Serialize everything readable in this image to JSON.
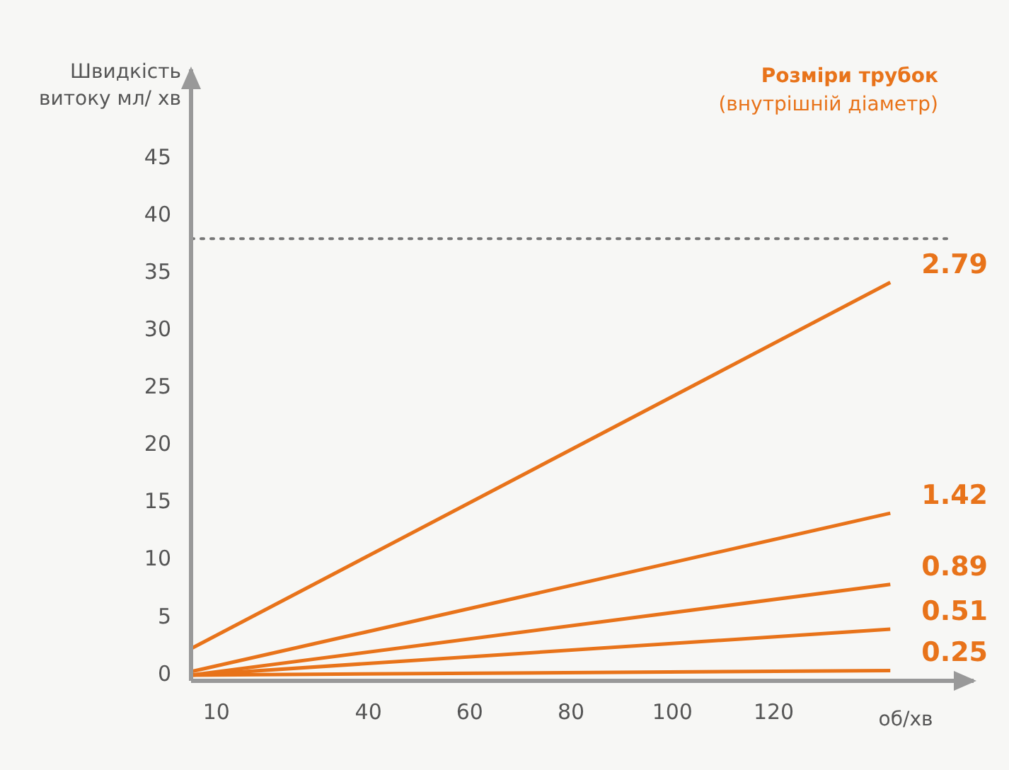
{
  "chart_data": {
    "type": "line",
    "ylabel": "Швидкість витоку мл/ хв",
    "xlabel": "об/хв",
    "legend_title": "Розміри трубок",
    "annotations": [
      "(внутрішній діаметр)"
    ],
    "x": [
      5,
      143
    ],
    "xlim": [
      5,
      160
    ],
    "xticks": [
      10,
      40,
      60,
      80,
      100,
      120
    ],
    "ylim": [
      -0.5,
      53
    ],
    "yticks": [
      0,
      5,
      10,
      15,
      20,
      25,
      30,
      35,
      40,
      45
    ],
    "grid": false,
    "legend": false,
    "marker": "none",
    "line_style": "solid",
    "ref_lines": [
      {
        "axis": "y",
        "value": 38,
        "color": "#777777",
        "line_style": "dotted"
      }
    ],
    "series": [
      {
        "name": "2.79",
        "color": "#e8731a",
        "values": [
          2.3,
          34.2
        ]
      },
      {
        "name": "1.42",
        "color": "#e8731a",
        "values": [
          0.3,
          14.1
        ]
      },
      {
        "name": "0.89",
        "color": "#e8731a",
        "values": [
          0,
          7.9
        ]
      },
      {
        "name": "0.51",
        "color": "#e8731a",
        "values": [
          0,
          4.0
        ]
      },
      {
        "name": "0.25",
        "color": "#e8731a",
        "values": [
          0,
          0.4
        ]
      }
    ]
  }
}
